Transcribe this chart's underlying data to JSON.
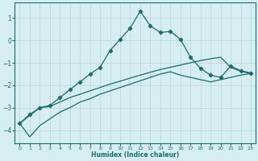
{
  "xlabel": "Humidex (Indice chaleur)",
  "ylabel": "",
  "background_color": "#d6eef2",
  "grid_color": "#b8d4d8",
  "line_color": "#1a6b6b",
  "xlim": [
    -0.5,
    23.5
  ],
  "ylim": [
    -4.6,
    1.7
  ],
  "xticks": [
    0,
    1,
    2,
    3,
    4,
    5,
    6,
    7,
    8,
    9,
    10,
    11,
    12,
    13,
    14,
    15,
    16,
    17,
    18,
    19,
    20,
    21,
    22,
    23
  ],
  "yticks": [
    -4,
    -3,
    -2,
    -1,
    0,
    1
  ],
  "line1_x": [
    0,
    1,
    2,
    3,
    4,
    5,
    6,
    7,
    8,
    9,
    10,
    11,
    12,
    13,
    14,
    15,
    16,
    17,
    18,
    19,
    20,
    21,
    22,
    23
  ],
  "line1_y": [
    -3.7,
    -3.3,
    -3.0,
    -2.9,
    -2.55,
    -2.2,
    -1.85,
    -1.5,
    -1.2,
    -0.45,
    0.05,
    0.55,
    1.3,
    0.65,
    0.35,
    0.4,
    0.05,
    -0.75,
    -1.25,
    -1.55,
    -1.65,
    -1.15,
    -1.35,
    -1.45
  ],
  "line2_x": [
    0,
    2,
    3,
    4,
    5,
    6,
    7,
    8,
    9,
    10,
    11,
    12,
    13,
    14,
    15,
    16,
    17,
    18,
    19,
    20,
    21,
    22,
    23
  ],
  "line2_y": [
    -3.7,
    -3.0,
    -2.95,
    -2.75,
    -2.55,
    -2.4,
    -2.25,
    -2.1,
    -1.95,
    -1.82,
    -1.68,
    -1.55,
    -1.42,
    -1.3,
    -1.2,
    -1.1,
    -1.0,
    -0.9,
    -0.82,
    -0.75,
    -1.2,
    -1.38,
    -1.48
  ],
  "line3_x": [
    0,
    1,
    2,
    3,
    4,
    5,
    6,
    7,
    8,
    9,
    10,
    11,
    12,
    13,
    14,
    15,
    16,
    17,
    18,
    19,
    20,
    21,
    22,
    23
  ],
  "line3_y": [
    -3.7,
    -4.3,
    -3.8,
    -3.5,
    -3.2,
    -3.0,
    -2.75,
    -2.6,
    -2.4,
    -2.25,
    -2.1,
    -1.95,
    -1.8,
    -1.65,
    -1.5,
    -1.4,
    -1.55,
    -1.65,
    -1.75,
    -1.85,
    -1.75,
    -1.65,
    -1.55,
    -1.48
  ]
}
